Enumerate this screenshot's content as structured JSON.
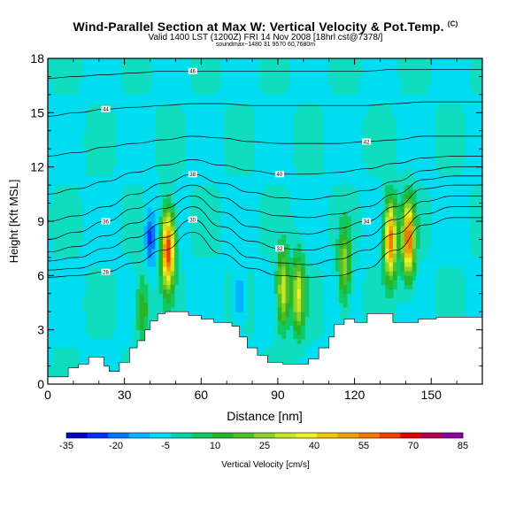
{
  "chart_data": {
    "type": "contour-section",
    "title": "Wind-Parallel Section at Max W: Vertical Velocity & Pot.Temp.",
    "title_mark": "(C)",
    "subtitle": "Valid 1400 LST (1200Z) FRI 14 Nov 2008 [18hrl cst@7378/]",
    "subtitle2": "soundmax~1480 31 9570 60,7680m",
    "xlabel": "Distance [nm]",
    "ylabel": "Height [Kft MSL]",
    "xlim": [
      0,
      170
    ],
    "ylim": [
      0,
      18
    ],
    "x_ticks": [
      "0",
      "30",
      "60",
      "90",
      "120",
      "150"
    ],
    "y_ticks": [
      "0",
      "3",
      "6",
      "9",
      "12",
      "15",
      "18"
    ],
    "terrain": [
      [
        0,
        0.4
      ],
      [
        4,
        0.4
      ],
      [
        8,
        0.9
      ],
      [
        12,
        1.1
      ],
      [
        16,
        1.5
      ],
      [
        22,
        1.0
      ],
      [
        24,
        0.7
      ],
      [
        28,
        1.2
      ],
      [
        32,
        2.0
      ],
      [
        35,
        2.4
      ],
      [
        38,
        3.0
      ],
      [
        40,
        3.5
      ],
      [
        43,
        3.9
      ],
      [
        46,
        4.0
      ],
      [
        50,
        4.0
      ],
      [
        55,
        3.8
      ],
      [
        60,
        3.6
      ],
      [
        65,
        3.4
      ],
      [
        68,
        3.4
      ],
      [
        72,
        3.2
      ],
      [
        75,
        2.6
      ],
      [
        78,
        2.0
      ],
      [
        82,
        1.6
      ],
      [
        86,
        1.2
      ],
      [
        92,
        1.1
      ],
      [
        98,
        1.1
      ],
      [
        102,
        1.4
      ],
      [
        106,
        2.0
      ],
      [
        110,
        2.6
      ],
      [
        112,
        3.3
      ],
      [
        116,
        3.6
      ],
      [
        120,
        3.4
      ],
      [
        125,
        3.9
      ],
      [
        130,
        3.9
      ],
      [
        135,
        3.4
      ],
      [
        140,
        3.4
      ],
      [
        145,
        3.6
      ],
      [
        152,
        3.7
      ],
      [
        160,
        3.7
      ],
      [
        170,
        3.7
      ]
    ],
    "updrafts": [
      {
        "x": 47,
        "z": 7.5,
        "w": 85
      },
      {
        "x": 92,
        "z": 5.2,
        "w": 45
      },
      {
        "x": 98,
        "z": 5.0,
        "w": 45
      },
      {
        "x": 134,
        "z": 8.0,
        "w": 75
      },
      {
        "x": 141,
        "z": 8.0,
        "w": 75
      },
      {
        "x": 116,
        "z": 6.5,
        "w": 35
      },
      {
        "x": 37,
        "z": 4.5,
        "w": 30
      }
    ],
    "downdrafts": [
      {
        "x": 40,
        "z": 8.0,
        "w": -25
      },
      {
        "x": 75,
        "z": 4.8,
        "w": -15
      },
      {
        "x": 37,
        "z": 5.3,
        "w": -10
      }
    ],
    "isentropes": [
      {
        "label": "28",
        "z": [
          5.9,
          6.0,
          6.2,
          6.7,
          7.4,
          8.4,
          7.2,
          6.4,
          6.0,
          5.9,
          6.0,
          6.4,
          7.4,
          8.8,
          9.2,
          9.2
        ]
      },
      {
        "label": "30",
        "z": [
          6.3,
          6.4,
          6.8,
          7.3,
          8.1,
          9.1,
          7.9,
          7.0,
          6.7,
          6.6,
          6.9,
          7.4,
          8.3,
          9.4,
          9.8,
          9.8
        ]
      },
      {
        "label": "32",
        "z": [
          6.8,
          7.0,
          7.5,
          8.1,
          8.9,
          9.8,
          8.7,
          7.9,
          7.5,
          7.4,
          7.7,
          8.2,
          9.1,
          10.1,
          10.4,
          10.4
        ]
      },
      {
        "label": "34",
        "z": [
          7.3,
          7.6,
          8.2,
          8.9,
          9.7,
          10.4,
          9.5,
          8.7,
          8.4,
          8.3,
          8.6,
          9.0,
          9.8,
          10.8,
          11.0,
          11.0
        ]
      },
      {
        "label": "36",
        "z": [
          8.0,
          8.4,
          9.0,
          9.7,
          10.4,
          11.0,
          10.3,
          9.6,
          9.3,
          9.2,
          9.4,
          9.8,
          10.5,
          11.3,
          11.5,
          11.5
        ]
      },
      {
        "label": "38",
        "z": [
          9.0,
          9.3,
          9.8,
          10.5,
          11.1,
          11.6,
          11.1,
          10.6,
          10.3,
          10.2,
          10.4,
          10.7,
          11.2,
          11.8,
          12.0,
          12.0
        ]
      },
      {
        "label": "40",
        "z": [
          10.5,
          10.8,
          11.2,
          11.7,
          12.1,
          12.4,
          12.1,
          11.8,
          11.6,
          11.6,
          11.7,
          11.9,
          12.2,
          12.5,
          12.6,
          12.6
        ]
      },
      {
        "label": "42",
        "z": [
          12.6,
          12.8,
          13.1,
          13.3,
          13.5,
          13.7,
          13.6,
          13.4,
          13.3,
          13.3,
          13.3,
          13.4,
          13.5,
          13.7,
          13.7,
          13.7
        ]
      },
      {
        "label": "44",
        "z": [
          14.8,
          15.0,
          15.2,
          15.3,
          15.4,
          15.5,
          15.5,
          15.4,
          15.4,
          15.4,
          15.4,
          15.4,
          15.5,
          15.6,
          15.6,
          15.6
        ]
      },
      {
        "label": "46",
        "z": [
          16.9,
          17.0,
          17.1,
          17.2,
          17.3,
          17.3,
          17.3,
          17.3,
          17.3,
          17.3,
          17.3,
          17.3,
          17.4,
          17.4,
          17.4,
          17.4
        ]
      }
    ],
    "colorbar": {
      "label": "Vertical Velocity [cm/s]",
      "tick_labels": [
        "-35",
        "-20",
        "-5",
        "10",
        "25",
        "40",
        "55",
        "70",
        "85"
      ],
      "colors": [
        "#0000c8",
        "#0030ff",
        "#0078ff",
        "#00b4ff",
        "#00dcf0",
        "#00d2b4",
        "#10c864",
        "#28b428",
        "#50be28",
        "#8cd228",
        "#c8e628",
        "#f0f028",
        "#f0c800",
        "#f0a000",
        "#f07800",
        "#f04000",
        "#e00000",
        "#b40050",
        "#8c00a0"
      ]
    }
  }
}
